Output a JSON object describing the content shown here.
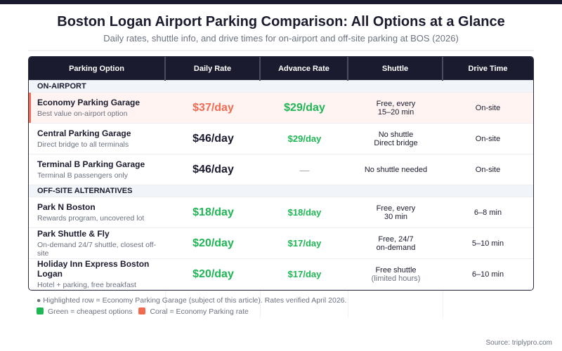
{
  "title": "Boston Logan Airport Parking Comparison: All Options at a Glance",
  "subtitle": "Daily rates, shuttle info, and drive times for on-airport and off-site parking at BOS (2026)",
  "columns": [
    "Parking Option",
    "Daily Rate",
    "Advance Rate",
    "Shuttle",
    "Drive Time"
  ],
  "sections": [
    {
      "label": "ON-AIRPORT",
      "rows": [
        {
          "name": "Economy Parking Garage",
          "desc": "Best value on-airport option",
          "daily": "$37/day",
          "advance": "$29/day",
          "shuttle": [
            "Free, every",
            "15–20 min"
          ],
          "drive": "On-site"
        },
        {
          "name": "Central Parking Garage",
          "desc": "Direct bridge to all terminals",
          "daily": "$46/day",
          "advance": "$29/day",
          "shuttle": [
            "No shuttle",
            "Direct bridge"
          ],
          "drive": "On-site"
        },
        {
          "name": "Terminal B Parking Garage",
          "desc": "Terminal B passengers only",
          "daily": "$46/day",
          "advance": "—",
          "shuttle": [
            "No shuttle needed",
            ""
          ],
          "drive": "On-site"
        }
      ]
    },
    {
      "label": "OFF-SITE ALTERNATIVES",
      "rows": [
        {
          "name": "Park N Boston",
          "desc": "Rewards program, uncovered lot",
          "daily": "$18/day",
          "advance": "$18/day",
          "shuttle": [
            "Free, every",
            "30 min"
          ],
          "drive": "6–8 min"
        },
        {
          "name": "Park Shuttle & Fly",
          "desc": "On-demand 24/7 shuttle, closest off-site",
          "daily": "$20/day",
          "advance": "$17/day",
          "shuttle": [
            "Free, 24/7",
            "on-demand"
          ],
          "drive": "5–10 min"
        },
        {
          "name": "Holiday Inn Express Boston Logan",
          "desc": "Hotel + parking, free breakfast",
          "daily": "$20/day",
          "advance": "$17/day",
          "shuttle": [
            "Free shuttle",
            "(limited hours)"
          ],
          "drive": "6–10 min"
        }
      ]
    }
  ],
  "footnote": "● Highlighted row = Economy Parking Garage (subject of this article). Rates verified April 2026.",
  "legend": [
    {
      "label": "Green = cheapest options",
      "color": "#1fb655"
    },
    {
      "label": "Coral = Economy Parking rate",
      "color": "#f26b50"
    }
  ],
  "source": "Source: triplypro.com",
  "colors": {
    "dark": "#1a1b2e",
    "green": "#1fb655",
    "coral": "#f26b50"
  }
}
